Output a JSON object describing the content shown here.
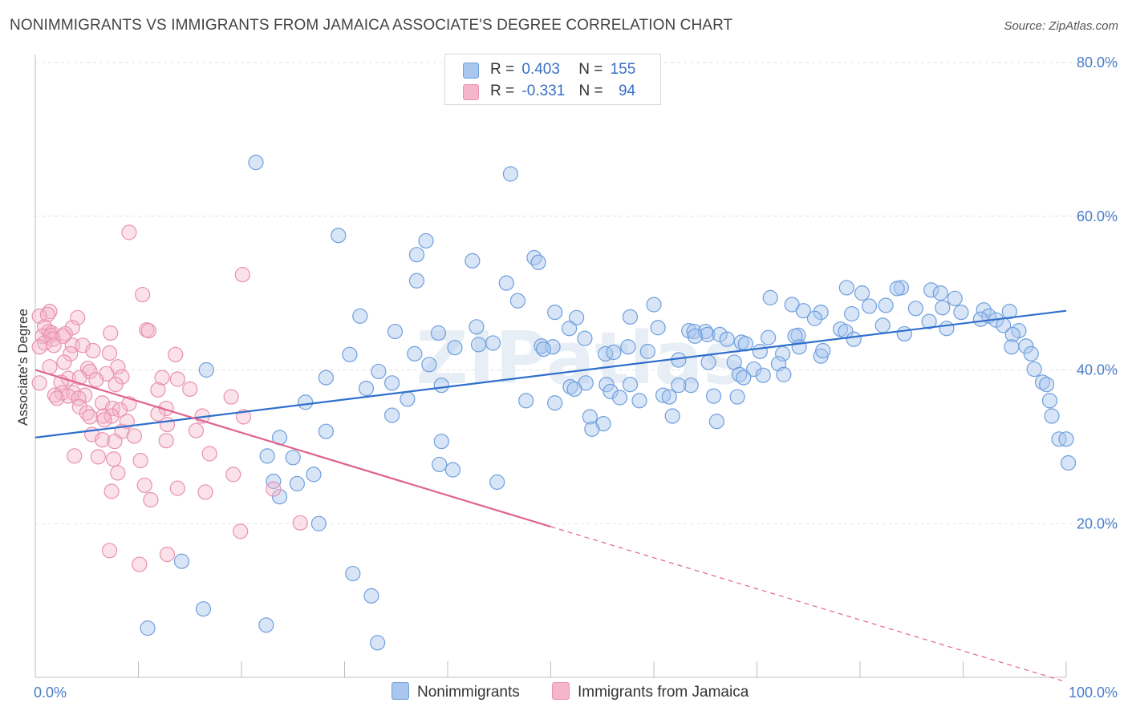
{
  "title": "NONIMMIGRANTS VS IMMIGRANTS FROM JAMAICA ASSOCIATE'S DEGREE CORRELATION CHART",
  "source": "Source: ZipAtlas.com",
  "watermark": "ZIPatlas",
  "legend_top": {
    "rows": [
      {
        "r_label": "R =",
        "r_value": "0.403",
        "n_label": "N =",
        "n_value": "155"
      },
      {
        "r_label": "R =",
        "r_value": "-0.331",
        "n_label": "N =",
        "n_value": "94"
      }
    ]
  },
  "colors": {
    "blue_fill": "#a9c6ee",
    "blue_stroke": "#6f9fdd",
    "blue_line": "#2f6fcc",
    "pink_fill": "#f5b5ca",
    "pink_stroke": "#e892ae",
    "pink_line": "#e0648d",
    "tick_text": "#4a7cc9",
    "grid": "#e2e2e2"
  },
  "chart_data": {
    "type": "scatter",
    "xlabel": "",
    "ylabel": "Associate's Degree",
    "xlim": [
      0,
      100
    ],
    "ylim": [
      0,
      80
    ],
    "x_tick_labels": [
      "0.0%",
      "100.0%"
    ],
    "y_ticks": [
      20,
      40,
      60,
      80
    ],
    "y_tick_labels": [
      "20.0%",
      "40.0%",
      "60.0%",
      "80.0%"
    ],
    "grid": "horizontal dashed",
    "legend": "bottom-center",
    "series": [
      {
        "name": "Nonimmigrants",
        "color": "#6f9fdd",
        "trend": {
          "x0": 0,
          "y0": 31.2,
          "x1": 100,
          "y1": 47.7
        },
        "points": [
          [
            21.4,
            67.0
          ],
          [
            46.1,
            65.5
          ],
          [
            29.4,
            57.5
          ],
          [
            37.9,
            56.8
          ],
          [
            37.0,
            55.0
          ],
          [
            42.4,
            54.2
          ],
          [
            48.4,
            54.6
          ],
          [
            48.8,
            54.0
          ],
          [
            37.0,
            51.6
          ],
          [
            45.7,
            51.3
          ],
          [
            78.7,
            50.7
          ],
          [
            84.0,
            50.7
          ],
          [
            86.9,
            50.4
          ],
          [
            80.2,
            50.0
          ],
          [
            83.6,
            50.6
          ],
          [
            87.8,
            50.0
          ],
          [
            89.2,
            49.3
          ],
          [
            71.3,
            49.4
          ],
          [
            46.8,
            49.0
          ],
          [
            60.0,
            48.5
          ],
          [
            73.4,
            48.5
          ],
          [
            80.9,
            48.3
          ],
          [
            82.5,
            48.4
          ],
          [
            85.4,
            48.0
          ],
          [
            88.0,
            48.1
          ],
          [
            92.0,
            47.8
          ],
          [
            94.5,
            47.6
          ],
          [
            89.8,
            47.5
          ],
          [
            50.4,
            47.5
          ],
          [
            74.5,
            47.7
          ],
          [
            76.2,
            47.5
          ],
          [
            79.2,
            47.3
          ],
          [
            75.6,
            46.7
          ],
          [
            92.5,
            47.0
          ],
          [
            93.2,
            46.5
          ],
          [
            31.5,
            47.0
          ],
          [
            52.5,
            46.8
          ],
          [
            57.7,
            46.9
          ],
          [
            86.7,
            46.3
          ],
          [
            91.7,
            46.6
          ],
          [
            82.2,
            45.8
          ],
          [
            93.9,
            45.8
          ],
          [
            42.8,
            45.6
          ],
          [
            51.8,
            45.4
          ],
          [
            60.4,
            45.5
          ],
          [
            63.4,
            45.1
          ],
          [
            78.1,
            45.3
          ],
          [
            88.4,
            45.4
          ],
          [
            34.9,
            45.0
          ],
          [
            39.1,
            44.8
          ],
          [
            63.9,
            45.0
          ],
          [
            78.6,
            45.0
          ],
          [
            65.0,
            45.0
          ],
          [
            65.2,
            44.6
          ],
          [
            66.4,
            44.6
          ],
          [
            95.4,
            45.1
          ],
          [
            74.0,
            44.5
          ],
          [
            71.1,
            44.2
          ],
          [
            73.7,
            44.4
          ],
          [
            84.3,
            44.7
          ],
          [
            94.8,
            44.6
          ],
          [
            43.0,
            43.3
          ],
          [
            49.1,
            43.1
          ],
          [
            53.3,
            44.1
          ],
          [
            64.0,
            44.4
          ],
          [
            67.1,
            44.0
          ],
          [
            68.5,
            43.6
          ],
          [
            68.9,
            43.4
          ],
          [
            74.1,
            43.0
          ],
          [
            79.4,
            44.0
          ],
          [
            94.7,
            43.0
          ],
          [
            96.1,
            43.1
          ],
          [
            40.7,
            42.9
          ],
          [
            44.4,
            43.5
          ],
          [
            50.2,
            43.0
          ],
          [
            55.3,
            42.1
          ],
          [
            56.1,
            42.3
          ],
          [
            57.5,
            43.0
          ],
          [
            30.5,
            42.0
          ],
          [
            36.8,
            42.1
          ],
          [
            49.3,
            42.7
          ],
          [
            59.4,
            42.4
          ],
          [
            62.4,
            41.3
          ],
          [
            70.3,
            42.4
          ],
          [
            72.5,
            42.1
          ],
          [
            76.2,
            41.8
          ],
          [
            76.4,
            42.5
          ],
          [
            96.6,
            42.1
          ],
          [
            65.3,
            41.0
          ],
          [
            67.8,
            41.0
          ],
          [
            72.1,
            40.8
          ],
          [
            16.6,
            40.0
          ],
          [
            69.7,
            40.1
          ],
          [
            96.9,
            40.1
          ],
          [
            33.3,
            39.8
          ],
          [
            38.2,
            40.7
          ],
          [
            68.3,
            39.4
          ],
          [
            70.6,
            39.3
          ],
          [
            72.6,
            39.4
          ],
          [
            97.7,
            38.4
          ],
          [
            98.1,
            38.1
          ],
          [
            28.2,
            39.0
          ],
          [
            34.6,
            38.3
          ],
          [
            39.4,
            38.0
          ],
          [
            63.6,
            38.0
          ],
          [
            53.4,
            38.3
          ],
          [
            55.4,
            38.1
          ],
          [
            57.7,
            38.1
          ],
          [
            62.4,
            38.0
          ],
          [
            32.1,
            37.6
          ],
          [
            98.4,
            36.0
          ],
          [
            51.9,
            37.8
          ],
          [
            52.3,
            37.5
          ],
          [
            60.9,
            36.7
          ],
          [
            61.5,
            36.5
          ],
          [
            65.8,
            36.6
          ],
          [
            68.7,
            39.0
          ],
          [
            55.8,
            37.2
          ],
          [
            56.7,
            36.4
          ],
          [
            58.6,
            36.0
          ],
          [
            68.1,
            36.5
          ],
          [
            26.2,
            35.8
          ],
          [
            36.1,
            36.2
          ],
          [
            47.6,
            36.0
          ],
          [
            50.4,
            35.7
          ],
          [
            34.6,
            34.1
          ],
          [
            61.8,
            34.0
          ],
          [
            98.6,
            34.0
          ],
          [
            53.8,
            33.9
          ],
          [
            55.1,
            33.0
          ],
          [
            66.1,
            33.3
          ],
          [
            54.0,
            32.3
          ],
          [
            28.2,
            32.0
          ],
          [
            39.4,
            30.7
          ],
          [
            23.7,
            31.2
          ],
          [
            99.3,
            31.0
          ],
          [
            100.0,
            31.0
          ],
          [
            22.5,
            28.8
          ],
          [
            25.0,
            28.6
          ],
          [
            39.2,
            27.7
          ],
          [
            100.2,
            27.9
          ],
          [
            40.5,
            27.0
          ],
          [
            27.0,
            26.4
          ],
          [
            23.1,
            25.5
          ],
          [
            44.8,
            25.4
          ],
          [
            25.4,
            25.2
          ],
          [
            23.7,
            23.5
          ],
          [
            14.2,
            15.1
          ],
          [
            30.8,
            13.5
          ],
          [
            32.6,
            10.6
          ],
          [
            16.3,
            8.9
          ],
          [
            10.9,
            6.4
          ],
          [
            22.4,
            6.8
          ],
          [
            33.2,
            4.5
          ],
          [
            27.5,
            20.0
          ]
        ]
      },
      {
        "name": "Immigrants from Jamaica",
        "color": "#e892ae",
        "trend": {
          "x0": 0,
          "y0": 40.0,
          "x1": 50,
          "y1": 19.6,
          "dashed_to": {
            "x": 100,
            "y": -0.6
          }
        },
        "points": [
          [
            9.1,
            57.9
          ],
          [
            20.1,
            52.4
          ],
          [
            1.4,
            47.6
          ],
          [
            0.4,
            47.0
          ],
          [
            1.2,
            47.2
          ],
          [
            10.4,
            49.8
          ],
          [
            4.1,
            46.8
          ],
          [
            0.9,
            45.6
          ],
          [
            3.6,
            45.5
          ],
          [
            1.3,
            45.0
          ],
          [
            2.9,
            44.7
          ],
          [
            1.6,
            44.8
          ],
          [
            7.3,
            44.8
          ],
          [
            0.7,
            44.4
          ],
          [
            1.5,
            44.5
          ],
          [
            1.7,
            44.0
          ],
          [
            2.7,
            44.4
          ],
          [
            10.8,
            45.2
          ],
          [
            11.0,
            45.1
          ],
          [
            0.9,
            43.5
          ],
          [
            0.4,
            43.0
          ],
          [
            1.8,
            43.2
          ],
          [
            3.6,
            43.2
          ],
          [
            4.6,
            43.2
          ],
          [
            3.4,
            42.1
          ],
          [
            5.6,
            42.5
          ],
          [
            7.2,
            42.2
          ],
          [
            13.6,
            42.0
          ],
          [
            2.8,
            41.0
          ],
          [
            1.4,
            40.4
          ],
          [
            5.1,
            40.2
          ],
          [
            8.0,
            40.4
          ],
          [
            5.3,
            39.8
          ],
          [
            6.9,
            39.5
          ],
          [
            8.4,
            39.1
          ],
          [
            12.3,
            39.0
          ],
          [
            13.8,
            38.8
          ],
          [
            3.2,
            38.9
          ],
          [
            4.3,
            39.0
          ],
          [
            2.5,
            38.4
          ],
          [
            5.9,
            38.7
          ],
          [
            7.8,
            38.1
          ],
          [
            0.4,
            38.3
          ],
          [
            11.9,
            37.4
          ],
          [
            15.0,
            37.5
          ],
          [
            2.6,
            37.0
          ],
          [
            3.7,
            37.0
          ],
          [
            1.9,
            36.7
          ],
          [
            3.2,
            36.6
          ],
          [
            4.8,
            36.7
          ],
          [
            2.1,
            36.3
          ],
          [
            4.2,
            36.3
          ],
          [
            19.0,
            36.5
          ],
          [
            6.5,
            35.7
          ],
          [
            9.1,
            35.6
          ],
          [
            12.7,
            35.0
          ],
          [
            4.3,
            35.2
          ],
          [
            7.5,
            35.0
          ],
          [
            8.2,
            34.8
          ],
          [
            11.9,
            34.3
          ],
          [
            5.0,
            34.4
          ],
          [
            6.6,
            34.0
          ],
          [
            7.4,
            34.0
          ],
          [
            16.2,
            34.0
          ],
          [
            20.2,
            33.9
          ],
          [
            5.3,
            33.9
          ],
          [
            6.7,
            33.5
          ],
          [
            8.9,
            33.3
          ],
          [
            12.8,
            32.9
          ],
          [
            15.6,
            32.1
          ],
          [
            8.4,
            32.0
          ],
          [
            5.5,
            31.6
          ],
          [
            9.6,
            31.4
          ],
          [
            6.5,
            30.9
          ],
          [
            7.7,
            30.7
          ],
          [
            12.7,
            30.8
          ],
          [
            3.8,
            28.8
          ],
          [
            6.1,
            28.7
          ],
          [
            7.6,
            28.4
          ],
          [
            10.2,
            28.2
          ],
          [
            16.9,
            29.1
          ],
          [
            19.2,
            26.4
          ],
          [
            13.8,
            24.6
          ],
          [
            10.6,
            25.0
          ],
          [
            7.4,
            24.2
          ],
          [
            8.0,
            26.6
          ],
          [
            11.2,
            23.1
          ],
          [
            16.5,
            24.1
          ],
          [
            23.1,
            24.5
          ],
          [
            19.9,
            19.0
          ],
          [
            25.7,
            20.1
          ],
          [
            7.2,
            16.5
          ],
          [
            12.8,
            16.0
          ],
          [
            10.1,
            14.7
          ]
        ]
      }
    ]
  }
}
